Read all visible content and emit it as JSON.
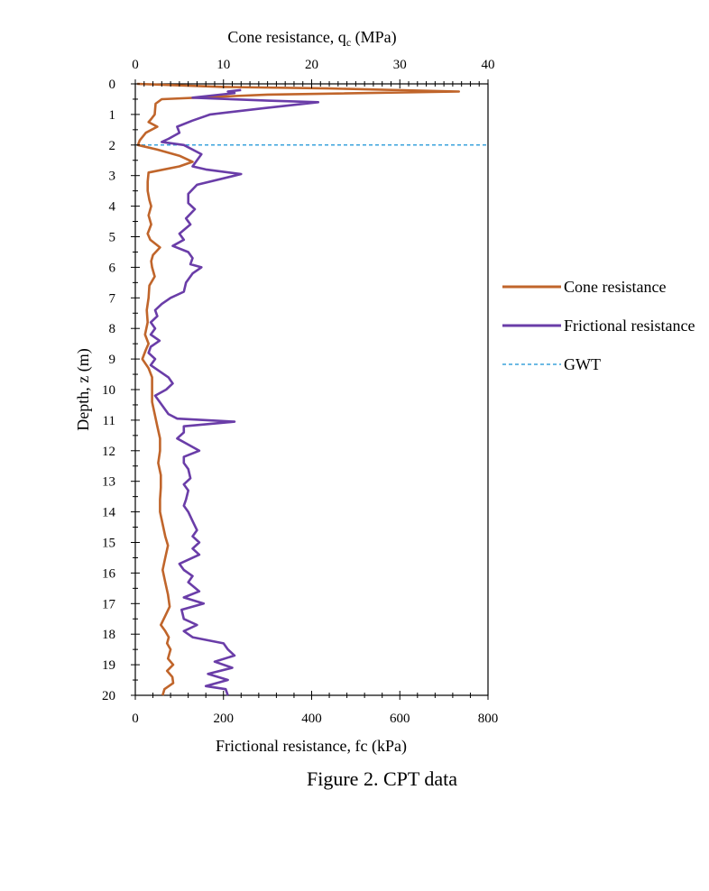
{
  "chart_data": {
    "type": "line",
    "title": "",
    "top_axis": {
      "label_main": "Cone resistance,  q",
      "label_sub": "c",
      "label_unit": " (MPa)",
      "range": [
        0,
        40
      ],
      "ticks": [
        "0",
        "10",
        "20",
        "30",
        "40"
      ]
    },
    "bottom_axis": {
      "label": "Frictional resistance,  fc (kPa)",
      "range": [
        0,
        800
      ],
      "ticks": [
        "0",
        "200",
        "400",
        "600",
        "800"
      ]
    },
    "y_axis": {
      "label": "Depth, z (m)",
      "range": [
        0,
        20
      ],
      "inverted": true,
      "ticks": [
        "0",
        "1",
        "2",
        "3",
        "4",
        "5",
        "6",
        "7",
        "8",
        "9",
        "10",
        "11",
        "12",
        "13",
        "14",
        "15",
        "16",
        "17",
        "18",
        "19",
        "20"
      ]
    },
    "legend_placement": "right",
    "series": [
      {
        "name": "Cone resistance",
        "axis": "top",
        "unit": "MPa",
        "color": "#C0652B",
        "points": [
          [
            0.2,
            0
          ],
          [
            10,
            0.1
          ],
          [
            22,
            0.15
          ],
          [
            36.7,
            0.25
          ],
          [
            15,
            0.35
          ],
          [
            3,
            0.5
          ],
          [
            2.3,
            0.65
          ],
          [
            2.2,
            1.0
          ],
          [
            1.8,
            1.15
          ],
          [
            1.5,
            1.25
          ],
          [
            2.5,
            1.4
          ],
          [
            1.2,
            1.6
          ],
          [
            0.5,
            1.85
          ],
          [
            0.3,
            2.0
          ],
          [
            2.5,
            2.15
          ],
          [
            5,
            2.35
          ],
          [
            6.5,
            2.55
          ],
          [
            5,
            2.7
          ],
          [
            1.5,
            2.9
          ],
          [
            1.4,
            3.2
          ],
          [
            1.4,
            3.5
          ],
          [
            1.6,
            3.8
          ],
          [
            1.8,
            4.0
          ],
          [
            1.5,
            4.3
          ],
          [
            1.8,
            4.6
          ],
          [
            1.4,
            4.9
          ],
          [
            1.7,
            5.1
          ],
          [
            2.8,
            5.35
          ],
          [
            2,
            5.6
          ],
          [
            1.8,
            5.8
          ],
          [
            1.9,
            6.0
          ],
          [
            2.2,
            6.3
          ],
          [
            1.6,
            6.6
          ],
          [
            1.5,
            7.0
          ],
          [
            1.3,
            7.4
          ],
          [
            1.4,
            7.8
          ],
          [
            1.1,
            8.2
          ],
          [
            1.5,
            8.5
          ],
          [
            1.2,
            8.7
          ],
          [
            0.8,
            9.0
          ],
          [
            1.5,
            9.3
          ],
          [
            1.9,
            9.6
          ],
          [
            1.9,
            10.0
          ],
          [
            1.9,
            10.4
          ],
          [
            2.2,
            10.8
          ],
          [
            2.5,
            11.2
          ],
          [
            2.8,
            11.6
          ],
          [
            2.8,
            12.0
          ],
          [
            2.6,
            12.4
          ],
          [
            2.9,
            12.8
          ],
          [
            2.9,
            13.2
          ],
          [
            2.8,
            13.6
          ],
          [
            2.8,
            14.0
          ],
          [
            3.1,
            14.4
          ],
          [
            3.4,
            14.8
          ],
          [
            3.7,
            15.1
          ],
          [
            3.4,
            15.5
          ],
          [
            3.1,
            15.9
          ],
          [
            3.4,
            16.3
          ],
          [
            3.7,
            16.7
          ],
          [
            3.9,
            17.1
          ],
          [
            3.4,
            17.4
          ],
          [
            2.9,
            17.7
          ],
          [
            3.4,
            17.9
          ],
          [
            3.8,
            18.1
          ],
          [
            3.6,
            18.3
          ],
          [
            4.0,
            18.5
          ],
          [
            3.7,
            18.8
          ],
          [
            4.3,
            19.0
          ],
          [
            3.6,
            19.2
          ],
          [
            4.2,
            19.4
          ],
          [
            4.3,
            19.6
          ],
          [
            3.3,
            19.8
          ],
          [
            3.1,
            20.0
          ]
        ]
      },
      {
        "name": "Frictional resistance",
        "axis": "bottom",
        "unit": "kPa",
        "color": "#6A3DA8",
        "points": [
          [
            240,
            0.2
          ],
          [
            210,
            0.25
          ],
          [
            225,
            0.3
          ],
          [
            130,
            0.45
          ],
          [
            300,
            0.55
          ],
          [
            415,
            0.6
          ],
          [
            290,
            0.8
          ],
          [
            170,
            1.0
          ],
          [
            130,
            1.2
          ],
          [
            95,
            1.4
          ],
          [
            100,
            1.6
          ],
          [
            75,
            1.8
          ],
          [
            60,
            1.9
          ],
          [
            110,
            2.0
          ],
          [
            130,
            2.15
          ],
          [
            150,
            2.3
          ],
          [
            140,
            2.5
          ],
          [
            130,
            2.7
          ],
          [
            160,
            2.8
          ],
          [
            240,
            2.95
          ],
          [
            140,
            3.3
          ],
          [
            120,
            3.6
          ],
          [
            120,
            3.9
          ],
          [
            135,
            4.1
          ],
          [
            115,
            4.4
          ],
          [
            125,
            4.6
          ],
          [
            100,
            4.9
          ],
          [
            110,
            5.1
          ],
          [
            85,
            5.3
          ],
          [
            120,
            5.5
          ],
          [
            130,
            5.7
          ],
          [
            125,
            5.9
          ],
          [
            150,
            6.0
          ],
          [
            130,
            6.2
          ],
          [
            115,
            6.5
          ],
          [
            110,
            6.8
          ],
          [
            80,
            7.0
          ],
          [
            60,
            7.2
          ],
          [
            45,
            7.4
          ],
          [
            50,
            7.6
          ],
          [
            35,
            7.8
          ],
          [
            45,
            8.0
          ],
          [
            35,
            8.2
          ],
          [
            55,
            8.4
          ],
          [
            35,
            8.6
          ],
          [
            30,
            8.8
          ],
          [
            45,
            9.0
          ],
          [
            35,
            9.2
          ],
          [
            55,
            9.4
          ],
          [
            75,
            9.6
          ],
          [
            85,
            9.8
          ],
          [
            70,
            10.0
          ],
          [
            45,
            10.2
          ],
          [
            60,
            10.5
          ],
          [
            75,
            10.8
          ],
          [
            95,
            10.95
          ],
          [
            225,
            11.05
          ],
          [
            110,
            11.2
          ],
          [
            110,
            11.4
          ],
          [
            95,
            11.6
          ],
          [
            120,
            11.8
          ],
          [
            145,
            12.0
          ],
          [
            110,
            12.2
          ],
          [
            110,
            12.4
          ],
          [
            120,
            12.6
          ],
          [
            125,
            12.9
          ],
          [
            110,
            13.1
          ],
          [
            120,
            13.3
          ],
          [
            115,
            13.6
          ],
          [
            110,
            13.8
          ],
          [
            120,
            14.0
          ],
          [
            130,
            14.3
          ],
          [
            140,
            14.6
          ],
          [
            130,
            14.8
          ],
          [
            145,
            15.0
          ],
          [
            130,
            15.2
          ],
          [
            145,
            15.4
          ],
          [
            100,
            15.7
          ],
          [
            110,
            15.9
          ],
          [
            130,
            16.1
          ],
          [
            120,
            16.3
          ],
          [
            145,
            16.6
          ],
          [
            110,
            16.8
          ],
          [
            155,
            17.0
          ],
          [
            105,
            17.2
          ],
          [
            110,
            17.5
          ],
          [
            140,
            17.7
          ],
          [
            110,
            17.9
          ],
          [
            130,
            18.1
          ],
          [
            200,
            18.3
          ],
          [
            210,
            18.5
          ],
          [
            225,
            18.7
          ],
          [
            180,
            18.9
          ],
          [
            220,
            19.1
          ],
          [
            165,
            19.3
          ],
          [
            210,
            19.5
          ],
          [
            160,
            19.7
          ],
          [
            205,
            19.8
          ],
          [
            210,
            20.0
          ]
        ]
      },
      {
        "name": "GWT",
        "axis": "bottom",
        "color": "#3BA3DC",
        "dashed": true,
        "points": [
          [
            0,
            2
          ],
          [
            800,
            2
          ]
        ]
      }
    ]
  },
  "caption": "Figure 2. CPT data"
}
